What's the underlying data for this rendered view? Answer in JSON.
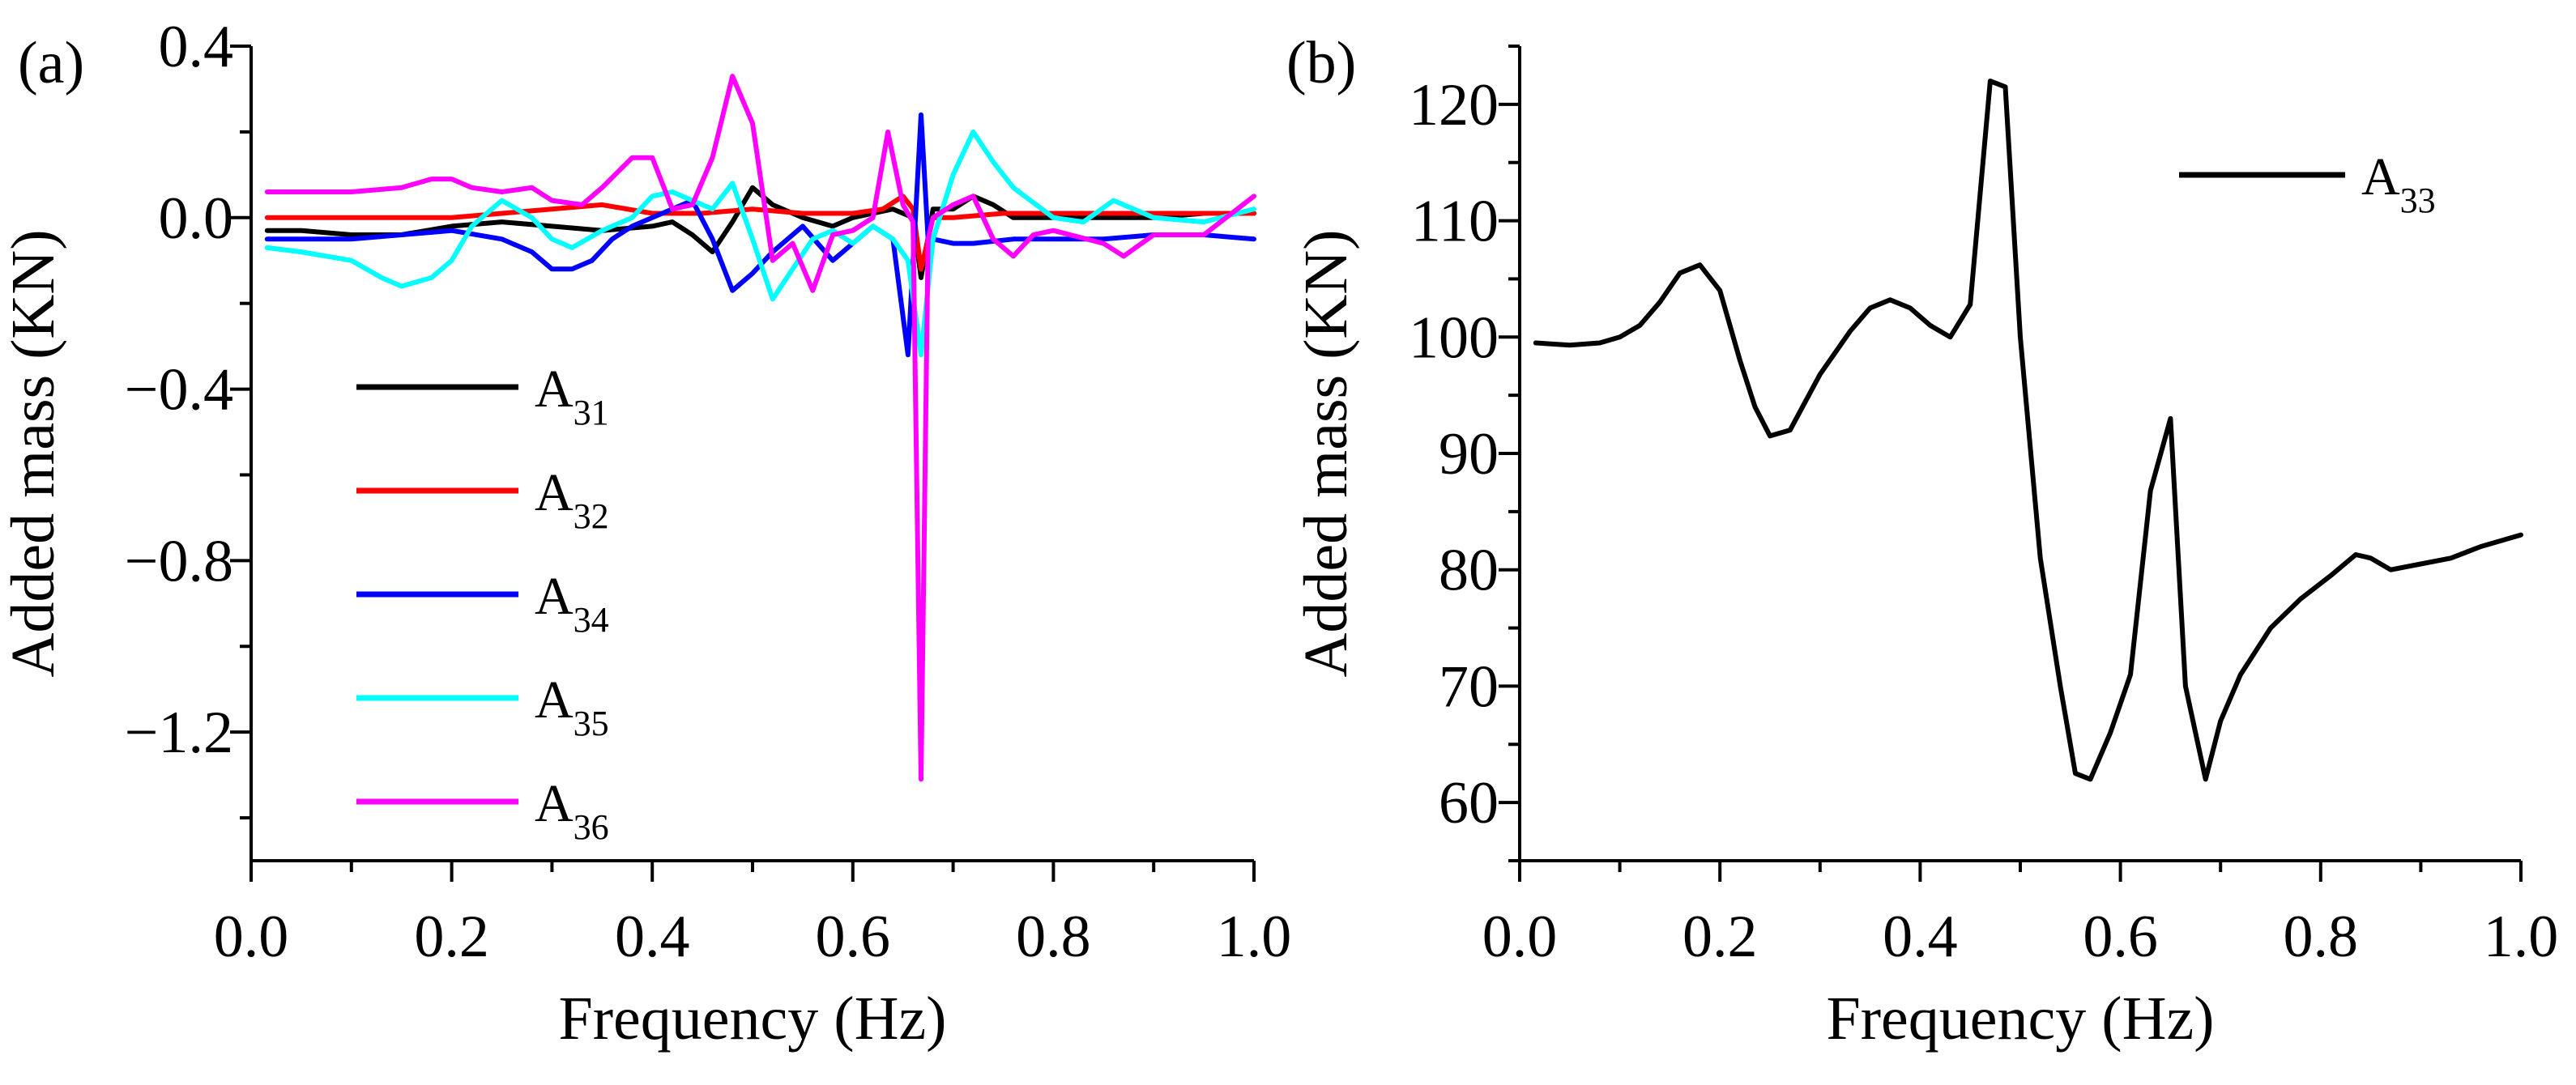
{
  "chart_data": [
    {
      "type": "line",
      "panel_label": "(a)",
      "xlabel": "Frequency (Hz)",
      "ylabel": "Added mass (KN)",
      "xlim": [
        0.0,
        1.0
      ],
      "ylim": [
        -1.5,
        0.4
      ],
      "xticks": [
        0.0,
        0.2,
        0.4,
        0.6,
        0.8,
        1.0
      ],
      "xtick_labels": [
        "0.0",
        "0.2",
        "0.4",
        "0.6",
        "0.8",
        "1.0"
      ],
      "yticks": [
        -1.2,
        -0.8,
        -0.4,
        0.0,
        0.4
      ],
      "ytick_labels": [
        "−1.2",
        "−0.8",
        "−0.4",
        "0.0",
        "0.4"
      ],
      "legend_position": "lower-left",
      "series": [
        {
          "name": "A31",
          "base": "A",
          "sub": "31",
          "color": "#000000",
          "x": [
            0.016,
            0.05,
            0.1,
            0.15,
            0.2,
            0.25,
            0.3,
            0.35,
            0.4,
            0.42,
            0.44,
            0.46,
            0.48,
            0.5,
            0.52,
            0.55,
            0.58,
            0.6,
            0.62,
            0.64,
            0.66,
            0.668,
            0.68,
            0.7,
            0.72,
            0.74,
            0.76,
            0.8,
            0.85,
            0.9,
            0.95,
            1.0
          ],
          "y": [
            -0.03,
            -0.03,
            -0.04,
            -0.04,
            -0.02,
            -0.01,
            -0.02,
            -0.03,
            -0.02,
            -0.01,
            -0.04,
            -0.08,
            -0.01,
            0.07,
            0.03,
            0.0,
            -0.02,
            0.0,
            0.01,
            0.02,
            0.0,
            -0.14,
            0.02,
            0.02,
            0.05,
            0.03,
            0.0,
            0.0,
            0.0,
            0.0,
            0.01,
            0.01
          ]
        },
        {
          "name": "A32",
          "base": "A",
          "sub": "32",
          "color": "#ff0000",
          "x": [
            0.016,
            0.1,
            0.2,
            0.3,
            0.35,
            0.4,
            0.45,
            0.5,
            0.55,
            0.6,
            0.63,
            0.65,
            0.66,
            0.668,
            0.68,
            0.7,
            0.75,
            0.8,
            0.9,
            1.0
          ],
          "y": [
            0.0,
            0.0,
            0.0,
            0.02,
            0.03,
            0.01,
            0.01,
            0.02,
            0.01,
            0.01,
            0.02,
            0.05,
            0.02,
            -0.12,
            0.0,
            0.0,
            0.01,
            0.01,
            0.01,
            0.01
          ]
        },
        {
          "name": "A34",
          "base": "A",
          "sub": "34",
          "color": "#0000ff",
          "x": [
            0.016,
            0.1,
            0.2,
            0.25,
            0.28,
            0.3,
            0.32,
            0.34,
            0.36,
            0.38,
            0.4,
            0.42,
            0.44,
            0.46,
            0.48,
            0.5,
            0.52,
            0.55,
            0.58,
            0.6,
            0.62,
            0.64,
            0.655,
            0.668,
            0.675,
            0.68,
            0.7,
            0.72,
            0.76,
            0.8,
            0.85,
            0.9,
            0.95,
            1.0
          ],
          "y": [
            -0.05,
            -0.05,
            -0.03,
            -0.05,
            -0.08,
            -0.12,
            -0.12,
            -0.1,
            -0.05,
            -0.02,
            0.0,
            0.02,
            0.04,
            -0.05,
            -0.17,
            -0.13,
            -0.08,
            -0.02,
            -0.1,
            -0.06,
            -0.02,
            -0.05,
            -0.32,
            0.24,
            -0.05,
            -0.05,
            -0.06,
            -0.06,
            -0.05,
            -0.05,
            -0.05,
            -0.04,
            -0.04,
            -0.05
          ]
        },
        {
          "name": "A35",
          "base": "A",
          "sub": "35",
          "color": "#00ffff",
          "x": [
            0.016,
            0.05,
            0.1,
            0.13,
            0.15,
            0.18,
            0.2,
            0.22,
            0.25,
            0.28,
            0.3,
            0.32,
            0.35,
            0.38,
            0.4,
            0.42,
            0.44,
            0.46,
            0.48,
            0.5,
            0.52,
            0.54,
            0.56,
            0.58,
            0.6,
            0.62,
            0.64,
            0.655,
            0.668,
            0.68,
            0.7,
            0.72,
            0.74,
            0.76,
            0.8,
            0.83,
            0.86,
            0.9,
            0.95,
            1.0
          ],
          "y": [
            -0.07,
            -0.08,
            -0.1,
            -0.14,
            -0.16,
            -0.14,
            -0.1,
            -0.02,
            0.04,
            0.0,
            -0.05,
            -0.07,
            -0.03,
            0.0,
            0.05,
            0.06,
            0.04,
            0.02,
            0.08,
            -0.05,
            -0.19,
            -0.12,
            -0.05,
            -0.03,
            -0.06,
            -0.02,
            -0.05,
            -0.1,
            -0.32,
            -0.05,
            0.1,
            0.2,
            0.13,
            0.07,
            0.0,
            -0.01,
            0.04,
            0.0,
            -0.01,
            0.02
          ]
        },
        {
          "name": "A36",
          "base": "A",
          "sub": "36",
          "color": "#ff00ff",
          "x": [
            0.016,
            0.05,
            0.1,
            0.15,
            0.18,
            0.2,
            0.22,
            0.25,
            0.28,
            0.3,
            0.33,
            0.35,
            0.38,
            0.4,
            0.42,
            0.44,
            0.46,
            0.48,
            0.5,
            0.52,
            0.54,
            0.56,
            0.58,
            0.6,
            0.62,
            0.635,
            0.65,
            0.66,
            0.668,
            0.675,
            0.68,
            0.7,
            0.72,
            0.74,
            0.76,
            0.78,
            0.8,
            0.85,
            0.87,
            0.9,
            0.95,
            1.0
          ],
          "y": [
            0.06,
            0.06,
            0.06,
            0.07,
            0.09,
            0.09,
            0.07,
            0.06,
            0.07,
            0.04,
            0.03,
            0.07,
            0.14,
            0.14,
            0.02,
            0.03,
            0.14,
            0.33,
            0.22,
            -0.1,
            -0.06,
            -0.17,
            -0.04,
            -0.03,
            0.0,
            0.2,
            0.03,
            -0.01,
            -1.31,
            -0.05,
            0.0,
            0.03,
            0.05,
            -0.05,
            -0.09,
            -0.04,
            -0.03,
            -0.06,
            -0.09,
            -0.04,
            -0.04,
            0.05
          ]
        }
      ]
    },
    {
      "type": "line",
      "panel_label": "(b)",
      "xlabel": "Frequency (Hz)",
      "ylabel": "Added mass (KN)",
      "xlim": [
        0.0,
        1.0
      ],
      "ylim": [
        55,
        125
      ],
      "xticks": [
        0.0,
        0.2,
        0.4,
        0.6,
        0.8,
        1.0
      ],
      "xtick_labels": [
        "0.0",
        "0.2",
        "0.4",
        "0.6",
        "0.8",
        "1.0"
      ],
      "yticks": [
        60,
        70,
        80,
        90,
        100,
        110,
        120
      ],
      "ytick_labels": [
        "60",
        "70",
        "80",
        "90",
        "100",
        "110",
        "120"
      ],
      "legend_position": "top-right",
      "series": [
        {
          "name": "A33",
          "base": "A",
          "sub": "33",
          "color": "#000000",
          "x": [
            0.016,
            0.05,
            0.08,
            0.1,
            0.12,
            0.14,
            0.16,
            0.18,
            0.2,
            0.22,
            0.235,
            0.25,
            0.27,
            0.3,
            0.33,
            0.35,
            0.37,
            0.39,
            0.41,
            0.43,
            0.45,
            0.47,
            0.485,
            0.5,
            0.52,
            0.54,
            0.555,
            0.57,
            0.59,
            0.61,
            0.63,
            0.65,
            0.665,
            0.685,
            0.7,
            0.72,
            0.75,
            0.78,
            0.81,
            0.835,
            0.85,
            0.87,
            0.9,
            0.93,
            0.96,
            1.0
          ],
          "y": [
            99.5,
            99.3,
            99.5,
            100.0,
            101.0,
            103.0,
            105.5,
            106.2,
            104.0,
            98.0,
            94.0,
            91.5,
            92.0,
            96.8,
            100.5,
            102.5,
            103.2,
            102.5,
            101.0,
            100.0,
            102.8,
            122.0,
            121.5,
            100.0,
            81.0,
            70.0,
            62.5,
            62.0,
            66.0,
            71.0,
            86.8,
            93.0,
            70.0,
            62.0,
            67.0,
            71.0,
            75.0,
            77.5,
            79.5,
            81.3,
            81.0,
            80.0,
            80.5,
            81.0,
            82.0,
            83.0
          ]
        }
      ]
    }
  ]
}
